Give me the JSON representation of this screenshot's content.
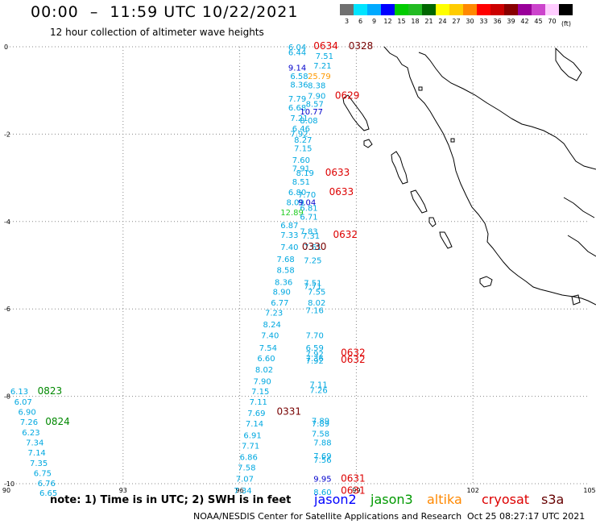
{
  "header": {
    "title": "00:00  –  11:59 UTC 10/22/2021",
    "subtitle": "12 hour collection of altimeter wave heights"
  },
  "colorbar": {
    "unit": "(ft)",
    "entries": [
      {
        "label": "3",
        "color": "#707070"
      },
      {
        "label": "6",
        "color": "#00e4ff"
      },
      {
        "label": "9",
        "color": "#00aaff"
      },
      {
        "label": "12",
        "color": "#0000ff"
      },
      {
        "label": "15",
        "color": "#00cc00"
      },
      {
        "label": "18",
        "color": "#22bb22"
      },
      {
        "label": "21",
        "color": "#006600"
      },
      {
        "label": "24",
        "color": "#ffff00"
      },
      {
        "label": "27",
        "color": "#ffcc00"
      },
      {
        "label": "30",
        "color": "#ff8800"
      },
      {
        "label": "33",
        "color": "#ff0000"
      },
      {
        "label": "36",
        "color": "#cc0000"
      },
      {
        "label": "39",
        "color": "#880000"
      },
      {
        "label": "42",
        "color": "#990099"
      },
      {
        "label": "45",
        "color": "#cc44cc"
      },
      {
        "label": "70",
        "color": "#ffccff"
      },
      {
        "label": "",
        "color": "#000000"
      }
    ]
  },
  "axes": {
    "lon_ticks": [
      "90",
      "93",
      "96",
      "99",
      "102",
      "105"
    ],
    "lat_ticks": [
      "0",
      "-2",
      "-4",
      "-6",
      "-8",
      "-10"
    ]
  },
  "colors": {
    "light_blue": "#00a8e0",
    "mid_blue": "#0055ff",
    "dark_blue": "#0000cc",
    "green": "#22cc22",
    "dark_green": "#008800",
    "orange": "#ff9900",
    "red": "#dd0000",
    "maroon": "#770000"
  },
  "observations": [
    {
      "text": "6.04",
      "lon": 97.25,
      "lat": 0.0,
      "c": "light_blue"
    },
    {
      "text": "6.44",
      "lon": 97.25,
      "lat": -0.12,
      "c": "light_blue"
    },
    {
      "text": "0634",
      "lon": 97.9,
      "lat": 0.02,
      "c": "red"
    },
    {
      "text": "0328",
      "lon": 98.8,
      "lat": 0.02,
      "c": "maroon"
    },
    {
      "text": "7.51",
      "lon": 97.95,
      "lat": -0.2,
      "c": "light_blue"
    },
    {
      "text": "7.21",
      "lon": 97.9,
      "lat": -0.42,
      "c": "light_blue"
    },
    {
      "text": "9.14",
      "lon": 97.25,
      "lat": -0.47,
      "c": "dark_blue"
    },
    {
      "text": "6.58",
      "lon": 97.3,
      "lat": -0.66,
      "c": "light_blue"
    },
    {
      "text": "25.79",
      "lon": 97.75,
      "lat": -0.66,
      "c": "orange"
    },
    {
      "text": "8.36",
      "lon": 97.3,
      "lat": -0.86,
      "c": "light_blue"
    },
    {
      "text": "8.38",
      "lon": 97.75,
      "lat": -0.88,
      "c": "light_blue"
    },
    {
      "text": "7.90",
      "lon": 97.75,
      "lat": -1.12,
      "c": "light_blue"
    },
    {
      "text": "0629",
      "lon": 98.45,
      "lat": -1.12,
      "c": "red"
    },
    {
      "text": "7.79",
      "lon": 97.25,
      "lat": -1.18,
      "c": "light_blue"
    },
    {
      "text": "8.57",
      "lon": 97.7,
      "lat": -1.3,
      "c": "light_blue"
    },
    {
      "text": "6.68",
      "lon": 97.25,
      "lat": -1.38,
      "c": "light_blue"
    },
    {
      "text": "10.77",
      "lon": 97.55,
      "lat": -1.48,
      "c": "dark_blue"
    },
    {
      "text": "7.21",
      "lon": 97.3,
      "lat": -1.62,
      "c": "light_blue"
    },
    {
      "text": "8.08",
      "lon": 97.55,
      "lat": -1.68,
      "c": "light_blue"
    },
    {
      "text": "6.46",
      "lon": 97.35,
      "lat": -1.86,
      "c": "light_blue"
    },
    {
      "text": "7.92",
      "lon": 97.3,
      "lat": -1.98,
      "c": "light_blue"
    },
    {
      "text": "8.27",
      "lon": 97.4,
      "lat": -2.12,
      "c": "light_blue"
    },
    {
      "text": "7.15",
      "lon": 97.4,
      "lat": -2.32,
      "c": "light_blue"
    },
    {
      "text": "7.60",
      "lon": 97.35,
      "lat": -2.58,
      "c": "light_blue"
    },
    {
      "text": "7.91",
      "lon": 97.35,
      "lat": -2.78,
      "c": "light_blue"
    },
    {
      "text": "8.19",
      "lon": 97.45,
      "lat": -2.88,
      "c": "light_blue"
    },
    {
      "text": "0633",
      "lon": 98.2,
      "lat": -2.88,
      "c": "red"
    },
    {
      "text": "8.51",
      "lon": 97.35,
      "lat": -3.08,
      "c": "light_blue"
    },
    {
      "text": "6.80",
      "lon": 97.25,
      "lat": -3.32,
      "c": "light_blue"
    },
    {
      "text": "7.70",
      "lon": 97.5,
      "lat": -3.38,
      "c": "light_blue"
    },
    {
      "text": "0633",
      "lon": 98.3,
      "lat": -3.32,
      "c": "red"
    },
    {
      "text": "8.09",
      "lon": 97.2,
      "lat": -3.55,
      "c": "light_blue"
    },
    {
      "text": "9.04",
      "lon": 97.5,
      "lat": -3.55,
      "c": "dark_blue"
    },
    {
      "text": "6.81",
      "lon": 97.55,
      "lat": -3.68,
      "c": "light_blue"
    },
    {
      "text": "12.89",
      "lon": 97.05,
      "lat": -3.78,
      "c": "green"
    },
    {
      "text": "6.71",
      "lon": 97.55,
      "lat": -3.88,
      "c": "light_blue"
    },
    {
      "text": "6.87",
      "lon": 97.05,
      "lat": -4.08,
      "c": "light_blue"
    },
    {
      "text": "7.83",
      "lon": 97.55,
      "lat": -4.22,
      "c": "light_blue"
    },
    {
      "text": "7.33",
      "lon": 97.05,
      "lat": -4.3,
      "c": "light_blue"
    },
    {
      "text": "7.31",
      "lon": 97.6,
      "lat": -4.32,
      "c": "light_blue"
    },
    {
      "text": "0632",
      "lon": 98.4,
      "lat": -4.3,
      "c": "red"
    },
    {
      "text": "7.40",
      "lon": 97.05,
      "lat": -4.58,
      "c": "light_blue"
    },
    {
      "text": "7.61",
      "lon": 97.65,
      "lat": -4.58,
      "c": "light_blue"
    },
    {
      "text": "0330",
      "lon": 97.6,
      "lat": -4.58,
      "c": "maroon"
    },
    {
      "text": "7.68",
      "lon": 96.95,
      "lat": -4.85,
      "c": "light_blue"
    },
    {
      "text": "7.25",
      "lon": 97.65,
      "lat": -4.88,
      "c": "light_blue"
    },
    {
      "text": "8.58",
      "lon": 96.95,
      "lat": -5.1,
      "c": "light_blue"
    },
    {
      "text": "8.36",
      "lon": 96.9,
      "lat": -5.38,
      "c": "light_blue"
    },
    {
      "text": "7.51",
      "lon": 97.65,
      "lat": -5.4,
      "c": "light_blue"
    },
    {
      "text": "7.71",
      "lon": 97.65,
      "lat": -5.47,
      "c": "light_blue"
    },
    {
      "text": "8.90",
      "lon": 96.85,
      "lat": -5.6,
      "c": "light_blue"
    },
    {
      "text": "7.55",
      "lon": 97.75,
      "lat": -5.6,
      "c": "light_blue"
    },
    {
      "text": "6.77",
      "lon": 96.8,
      "lat": -5.85,
      "c": "light_blue"
    },
    {
      "text": "8.02",
      "lon": 97.75,
      "lat": -5.85,
      "c": "light_blue"
    },
    {
      "text": "7.16",
      "lon": 97.7,
      "lat": -6.02,
      "c": "light_blue"
    },
    {
      "text": "7.23",
      "lon": 96.65,
      "lat": -6.08,
      "c": "light_blue"
    },
    {
      "text": "8.24",
      "lon": 96.6,
      "lat": -6.35,
      "c": "light_blue"
    },
    {
      "text": "7.40",
      "lon": 96.55,
      "lat": -6.6,
      "c": "light_blue"
    },
    {
      "text": "7.70",
      "lon": 97.7,
      "lat": -6.6,
      "c": "light_blue"
    },
    {
      "text": "7.54",
      "lon": 96.5,
      "lat": -6.88,
      "c": "light_blue"
    },
    {
      "text": "6.59",
      "lon": 97.7,
      "lat": -6.88,
      "c": "light_blue"
    },
    {
      "text": "7.92",
      "lon": 97.7,
      "lat": -7.02,
      "c": "light_blue"
    },
    {
      "text": "0632",
      "lon": 98.6,
      "lat": -7.0,
      "c": "red"
    },
    {
      "text": "6.60",
      "lon": 96.45,
      "lat": -7.12,
      "c": "light_blue"
    },
    {
      "text": "7.36",
      "lon": 97.7,
      "lat": -7.12,
      "c": "light_blue"
    },
    {
      "text": "7.92",
      "lon": 97.7,
      "lat": -7.18,
      "c": "light_blue"
    },
    {
      "text": "0632",
      "lon": 98.6,
      "lat": -7.16,
      "c": "red"
    },
    {
      "text": "8.02",
      "lon": 96.4,
      "lat": -7.38,
      "c": "light_blue"
    },
    {
      "text": "7.90",
      "lon": 96.35,
      "lat": -7.65,
      "c": "light_blue"
    },
    {
      "text": "7.11",
      "lon": 97.8,
      "lat": -7.72,
      "c": "light_blue"
    },
    {
      "text": "7.15",
      "lon": 96.3,
      "lat": -7.88,
      "c": "light_blue"
    },
    {
      "text": "7.26",
      "lon": 97.8,
      "lat": -7.85,
      "c": "light_blue"
    },
    {
      "text": "7.11",
      "lon": 96.25,
      "lat": -8.12,
      "c": "light_blue"
    },
    {
      "text": "7.69",
      "lon": 96.2,
      "lat": -8.38,
      "c": "light_blue"
    },
    {
      "text": "0331",
      "lon": 96.95,
      "lat": -8.35,
      "c": "maroon"
    },
    {
      "text": "7.14",
      "lon": 96.15,
      "lat": -8.62,
      "c": "light_blue"
    },
    {
      "text": "7.89",
      "lon": 97.85,
      "lat": -8.55,
      "c": "light_blue"
    },
    {
      "text": "7.89",
      "lon": 97.85,
      "lat": -8.62,
      "c": "light_blue"
    },
    {
      "text": "6.91",
      "lon": 96.1,
      "lat": -8.88,
      "c": "light_blue"
    },
    {
      "text": "7.58",
      "lon": 97.85,
      "lat": -8.85,
      "c": "light_blue"
    },
    {
      "text": "7.71",
      "lon": 96.05,
      "lat": -9.12,
      "c": "light_blue"
    },
    {
      "text": "7.88",
      "lon": 97.9,
      "lat": -9.05,
      "c": "light_blue"
    },
    {
      "text": "6.86",
      "lon": 96.0,
      "lat": -9.38,
      "c": "light_blue"
    },
    {
      "text": "7.69",
      "lon": 97.9,
      "lat": -9.35,
      "c": "light_blue"
    },
    {
      "text": "7.56",
      "lon": 97.9,
      "lat": -9.45,
      "c": "light_blue"
    },
    {
      "text": "7.58",
      "lon": 95.95,
      "lat": -9.62,
      "c": "light_blue"
    },
    {
      "text": "7.07",
      "lon": 95.9,
      "lat": -9.88,
      "c": "light_blue"
    },
    {
      "text": "9.95",
      "lon": 97.9,
      "lat": -9.88,
      "c": "dark_blue"
    },
    {
      "text": "0631",
      "lon": 98.6,
      "lat": -9.88,
      "c": "red"
    },
    {
      "text": "7.34",
      "lon": 95.85,
      "lat": -10.15,
      "c": "light_blue"
    },
    {
      "text": "8.60",
      "lon": 97.9,
      "lat": -10.18,
      "c": "light_blue"
    },
    {
      "text": "0631",
      "lon": 98.6,
      "lat": -10.16,
      "c": "red"
    },
    {
      "text": "6.13",
      "lon": 90.1,
      "lat": -7.88,
      "c": "light_blue"
    },
    {
      "text": "0823",
      "lon": 90.8,
      "lat": -7.88,
      "c": "dark_green"
    },
    {
      "text": "6.07",
      "lon": 90.2,
      "lat": -8.12,
      "c": "light_blue"
    },
    {
      "text": "6.90",
      "lon": 90.3,
      "lat": -8.35,
      "c": "light_blue"
    },
    {
      "text": "7.26",
      "lon": 90.35,
      "lat": -8.58,
      "c": "light_blue"
    },
    {
      "text": "0824",
      "lon": 91.0,
      "lat": -8.58,
      "c": "dark_green"
    },
    {
      "text": "6.23",
      "lon": 90.4,
      "lat": -8.82,
      "c": "light_blue"
    },
    {
      "text": "7.34",
      "lon": 90.5,
      "lat": -9.05,
      "c": "light_blue"
    },
    {
      "text": "7.14",
      "lon": 90.55,
      "lat": -9.28,
      "c": "light_blue"
    },
    {
      "text": "7.35",
      "lon": 90.6,
      "lat": -9.52,
      "c": "light_blue"
    },
    {
      "text": "6.75",
      "lon": 90.7,
      "lat": -9.75,
      "c": "light_blue"
    },
    {
      "text": "6.76",
      "lon": 90.8,
      "lat": -9.98,
      "c": "light_blue"
    },
    {
      "text": "6.65",
      "lon": 90.85,
      "lat": -10.2,
      "c": "light_blue"
    }
  ],
  "footer": {
    "note": "note: 1) Time is in UTC; 2) SWH is in feet",
    "satellites": [
      {
        "label": "jason2",
        "color": "#0000ff"
      },
      {
        "label": "jason3",
        "color": "#009900"
      },
      {
        "label": "altika",
        "color": "#ff8800"
      },
      {
        "label": "cryosat",
        "color": "#dd0000"
      },
      {
        "label": "s3a",
        "color": "#660000"
      }
    ],
    "credit": "NOAA/NESDIS Center for Satellite Applications and Research",
    "timestamp": "Oct 25 08:27:17 UTC 2021"
  }
}
